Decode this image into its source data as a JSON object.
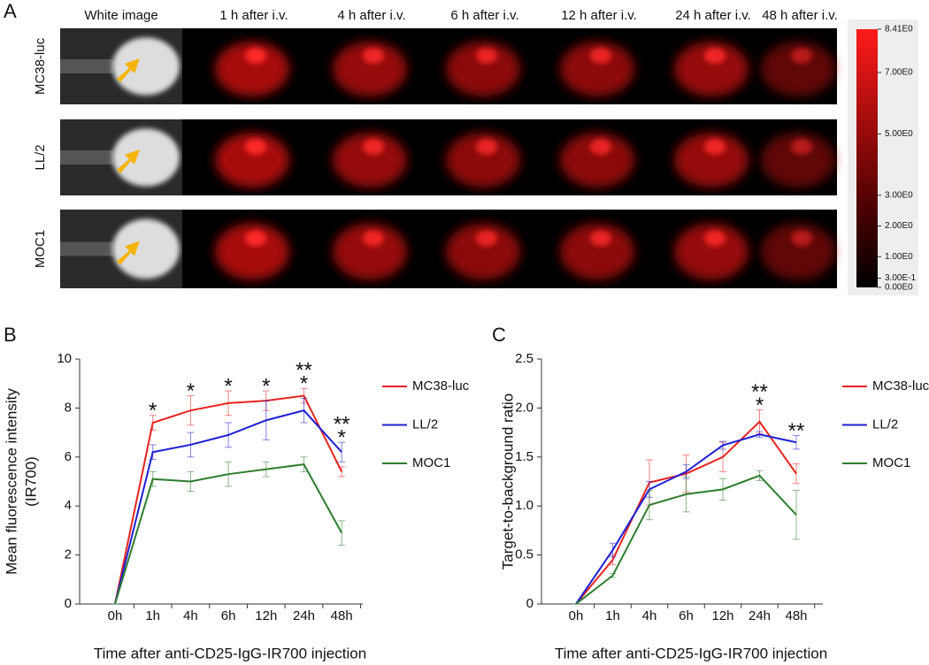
{
  "panels": {
    "a": "A",
    "b": "B",
    "c": "C"
  },
  "imaging": {
    "columns": [
      "White image",
      "1 h after i.v.",
      "4 h after i.v.",
      "6 h after i.v.",
      "12 h after i.v.",
      "24 h after i.v.",
      "48 h after i.v."
    ],
    "rows": [
      "MC38-luc",
      "LL/2",
      "MOC1"
    ],
    "colorbar": {
      "ticks": [
        {
          "value": 8.41,
          "label": "8.41E0"
        },
        {
          "value": 7,
          "label": "7.00E0"
        },
        {
          "value": 5,
          "label": "5.00E0"
        },
        {
          "value": 3,
          "label": "3.00E0"
        },
        {
          "value": 2,
          "label": "2.00E0"
        },
        {
          "value": 1,
          "label": "1.00E0"
        },
        {
          "value": 0.3,
          "label": "3.00E-1"
        },
        {
          "value": 0,
          "label": "0.00E0"
        }
      ]
    }
  },
  "chart_data": [
    {
      "type": "line",
      "x_label": "Time after anti-CD25-IgG-IR700 injection",
      "y_label": [
        "Mean fluorescence intensity",
        "(IR700)"
      ],
      "categories": [
        "0h",
        "1h",
        "4h",
        "6h",
        "12h",
        "24h",
        "48h"
      ],
      "series": [
        {
          "name": "MC38-luc",
          "color": "#e8231f",
          "values": [
            0,
            7.4,
            7.9,
            8.2,
            8.3,
            8.5,
            5.4
          ],
          "errors": [
            0,
            0.3,
            0.6,
            0.5,
            0.4,
            0.3,
            0.2
          ]
        },
        {
          "name": "LL/2",
          "color": "#1f1fd6",
          "values": [
            0,
            6.2,
            6.5,
            6.9,
            7.5,
            7.9,
            6.2
          ],
          "errors": [
            0,
            0.3,
            0.5,
            0.5,
            0.8,
            0.5,
            0.4
          ]
        },
        {
          "name": "MOC1",
          "color": "#2e7d2e",
          "values": [
            0,
            5.1,
            5.0,
            5.3,
            5.5,
            5.7,
            2.9
          ],
          "errors": [
            0,
            0.3,
            0.4,
            0.5,
            0.3,
            0.3,
            0.5
          ]
        }
      ],
      "annotations": [
        null,
        [
          "*"
        ],
        [
          "*"
        ],
        [
          "*"
        ],
        [
          "*"
        ],
        [
          "**",
          "*"
        ],
        [
          "**",
          "*"
        ]
      ],
      "ylim": [
        0,
        10
      ],
      "yticks": [
        0,
        2,
        4,
        6,
        8,
        10
      ],
      "legend": "right"
    },
    {
      "type": "line",
      "x_label": "Time after anti-CD25-IgG-IR700 injection",
      "y_label": [
        "Target-to-background ratio"
      ],
      "categories": [
        "0h",
        "1h",
        "4h",
        "6h",
        "12h",
        "24h",
        "48h"
      ],
      "series": [
        {
          "name": "MC38-luc",
          "color": "#e8231f",
          "values": [
            0,
            0.45,
            1.24,
            1.33,
            1.5,
            1.86,
            1.33
          ],
          "errors": [
            0,
            0.05,
            0.23,
            0.19,
            0.15,
            0.12,
            0.1
          ]
        },
        {
          "name": "LL/2",
          "color": "#1f1fd6",
          "values": [
            0,
            0.55,
            1.17,
            1.35,
            1.62,
            1.73,
            1.65
          ],
          "errors": [
            0,
            0.07,
            0.08,
            0.07,
            0.04,
            0.03,
            0.07
          ]
        },
        {
          "name": "MOC1",
          "color": "#2e7d2e",
          "values": [
            0,
            0.29,
            1.01,
            1.12,
            1.17,
            1.31,
            0.91
          ],
          "errors": [
            0,
            0.02,
            0.15,
            0.18,
            0.11,
            0.05,
            0.25
          ]
        }
      ],
      "annotations": [
        null,
        null,
        null,
        null,
        null,
        [
          "**",
          "*"
        ],
        [
          "**"
        ]
      ],
      "ylim": [
        0,
        2.5
      ],
      "yticks": [
        0,
        0.5,
        {
          "value": 1,
          "label": "1.0"
        },
        1.5,
        {
          "value": 2,
          "label": "2.0"
        },
        2.5
      ],
      "legend": "right"
    }
  ]
}
